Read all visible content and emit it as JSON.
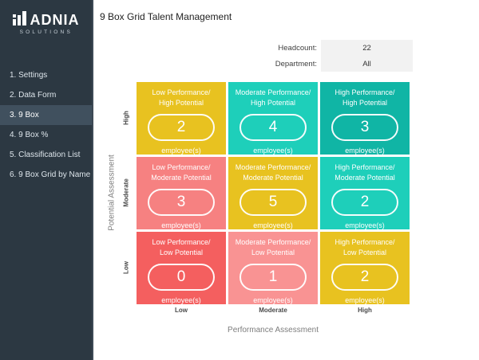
{
  "sidebar": {
    "brand": "ADNIA",
    "brand_sub": "SOLUTIONS",
    "items": [
      {
        "id": "settings",
        "label": "1. Settings",
        "active": false
      },
      {
        "id": "data-form",
        "label": "2. Data Form",
        "active": false
      },
      {
        "id": "9-box",
        "label": "3. 9 Box",
        "active": true
      },
      {
        "id": "9-box-percent",
        "label": "4. 9 Box %",
        "active": false
      },
      {
        "id": "classification-list",
        "label": "5. Classification List",
        "active": false
      },
      {
        "id": "9-box-grid-by-name",
        "label": "6. 9 Box Grid by Name",
        "active": false
      }
    ]
  },
  "header": {
    "title": "9 Box Grid Talent Management",
    "fields": [
      {
        "id": "headcount",
        "label": "Headcount:",
        "value": "22",
        "interactable": false
      },
      {
        "id": "department",
        "label": "Department:",
        "value": "All",
        "interactable": true
      }
    ]
  },
  "grid": {
    "x_axis_title": "Performance Assessment",
    "y_axis_title": "Potential Assessment",
    "col_labels": [
      "Low",
      "Moderate",
      "High"
    ],
    "row_labels": [
      "High",
      "Moderate",
      "Low"
    ],
    "unit_label": "employee(s)",
    "cells": [
      {
        "row": "High",
        "col": "Low",
        "title": [
          "Low Performance/",
          "High Potential"
        ],
        "count": "2",
        "color": "#e8c220"
      },
      {
        "row": "High",
        "col": "Moderate",
        "title": [
          "Moderate Performance/",
          "High Potential"
        ],
        "count": "4",
        "color": "#1ecfba"
      },
      {
        "row": "High",
        "col": "High",
        "title": [
          "High Performance/",
          "High Potential"
        ],
        "count": "3",
        "color": "#10b5a5"
      },
      {
        "row": "Moderate",
        "col": "Low",
        "title": [
          "Low Performance/",
          "Moderate Potential"
        ],
        "count": "3",
        "color": "#f68181"
      },
      {
        "row": "Moderate",
        "col": "Moderate",
        "title": [
          "Moderate Performance/",
          "Moderate Potential"
        ],
        "count": "5",
        "color": "#e8c220"
      },
      {
        "row": "Moderate",
        "col": "High",
        "title": [
          "High Performance/",
          "Moderate Potential"
        ],
        "count": "2",
        "color": "#1ecfba"
      },
      {
        "row": "Low",
        "col": "Low",
        "title": [
          "Low Performance/",
          "Low Potential"
        ],
        "count": "0",
        "color": "#f45f5f"
      },
      {
        "row": "Low",
        "col": "Moderate",
        "title": [
          "Moderate Performance/",
          "Low Potential"
        ],
        "count": "1",
        "color": "#f99393"
      },
      {
        "row": "Low",
        "col": "High",
        "title": [
          "High Performance/",
          "Low Potential"
        ],
        "count": "2",
        "color": "#e8c220"
      }
    ]
  },
  "colors": {
    "sidebar_bg": "#2c3842",
    "sidebar_active": "#40505e",
    "field_bg": "#f2f2f2",
    "yellow": "#e8c220",
    "teal_light": "#1ecfba",
    "teal_dark": "#10b5a5",
    "salmon": "#f68181",
    "salmon_light": "#f99393",
    "red": "#f45f5f"
  }
}
